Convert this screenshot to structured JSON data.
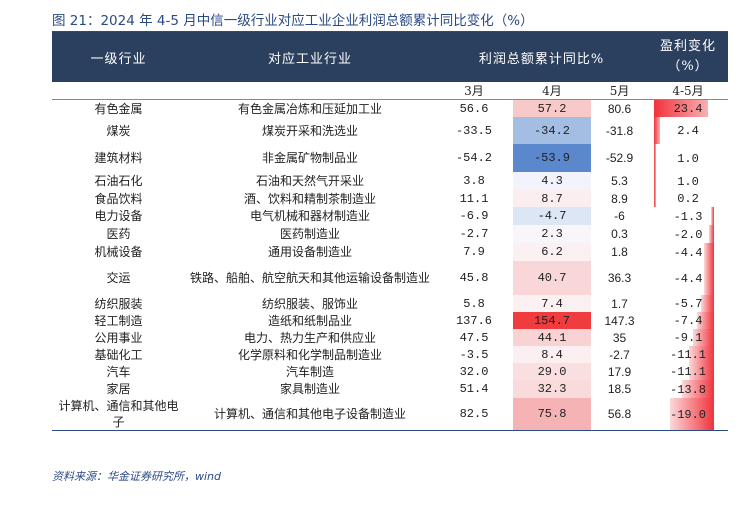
{
  "title": "图 21：2024 年 4-5 月中信一级行业对应工业企业利润总额累计同比变化（%）",
  "headers": {
    "col_industry": "一级行业",
    "col_corr": "对应工业行业",
    "col_profit": "利润总额累计同比%",
    "col_change": "盈利变化（%）",
    "m3": "3月",
    "m4": "4月",
    "m5": "5月",
    "m45": "4-5月"
  },
  "rows": [
    {
      "industry": "有色金属",
      "corr": "有色金属冶炼和压延加工业",
      "m3": "56.6",
      "m4": "57.2",
      "m5": "80.6",
      "chg": "23.4",
      "chg_value": 23.4,
      "m4_color": "#f8c9c9"
    },
    {
      "industry": "煤炭",
      "corr": "煤炭开采和洗选业",
      "m3": "-33.5",
      "m4": "-34.2",
      "m5": "-31.8",
      "chg": "2.4",
      "chg_value": 2.4,
      "m4_color": "#a3bde3"
    },
    {
      "industry": "建筑材料",
      "corr": "非金属矿物制品业",
      "m3": "-54.2",
      "m4": "-53.9",
      "m5": "-52.9",
      "chg": "1.0",
      "chg_value": 1.0,
      "m4_color": "#5b87cc"
    },
    {
      "industry": "石油石化",
      "corr": "石油和天然气开采业",
      "m3": "3.8",
      "m4": "4.3",
      "m5": "5.3",
      "chg": "1.0",
      "chg_value": 1.0,
      "m4_color": "#f3f4fb"
    },
    {
      "industry": "食品饮料",
      "corr": "酒、饮料和精制茶制造业",
      "m3": "11.1",
      "m4": "8.7",
      "m5": "8.9",
      "chg": "0.2",
      "chg_value": 0.2,
      "m4_color": "#fbeef0"
    },
    {
      "industry": "电力设备",
      "corr": "电气机械和器材制造业",
      "m3": "-6.9",
      "m4": "-4.7",
      "m5": "-6",
      "chg": "-1.3",
      "chg_value": -1.3,
      "m4_color": "#dde6f5"
    },
    {
      "industry": "医药",
      "corr": "医药制造业",
      "m3": "-2.7",
      "m4": "2.3",
      "m5": "0.3",
      "chg": "-2.0",
      "chg_value": -2.0,
      "m4_color": "#f9f6fa"
    },
    {
      "industry": "机械设备",
      "corr": "通用设备制造业",
      "m3": "7.9",
      "m4": "6.2",
      "m5": "1.8",
      "chg": "-4.4",
      "chg_value": -4.4,
      "m4_color": "#fbf1f3"
    },
    {
      "industry": "交运",
      "corr": "铁路、船舶、航空航天和其他运输设备制造业",
      "m3": "45.8",
      "m4": "40.7",
      "m5": "36.3",
      "chg": "-4.4",
      "chg_value": -4.4,
      "m4_color": "#f9d6d7"
    },
    {
      "industry": "纺织服装",
      "corr": "纺织服装、服饰业",
      "m3": "5.8",
      "m4": "7.4",
      "m5": "1.7",
      "chg": "-5.7",
      "chg_value": -5.7,
      "m4_color": "#fbf0f2"
    },
    {
      "industry": "轻工制造",
      "corr": "造纸和纸制品业",
      "m3": "137.6",
      "m4": "154.7",
      "m5": "147.3",
      "chg": "-7.4",
      "chg_value": -7.4,
      "m4_color": "#f03c3e"
    },
    {
      "industry": "公用事业",
      "corr": "电力、热力生产和供应业",
      "m3": "47.5",
      "m4": "44.1",
      "m5": "35",
      "chg": "-9.1",
      "chg_value": -9.1,
      "m4_color": "#f9d2d3"
    },
    {
      "industry": "基础化工",
      "corr": "化学原料和化学制品制造业",
      "m3": "-3.5",
      "m4": "8.4",
      "m5": "-2.7",
      "chg": "-11.1",
      "chg_value": -11.1,
      "m4_color": "#fbeff1"
    },
    {
      "industry": "汽车",
      "corr": "汽车制造",
      "m3": "32.0",
      "m4": "29.0",
      "m5": "17.9",
      "chg": "-11.1",
      "chg_value": -11.1,
      "m4_color": "#fadfe0"
    },
    {
      "industry": "家居",
      "corr": "家具制造业",
      "m3": "51.4",
      "m4": "32.3",
      "m5": "18.5",
      "chg": "-13.8",
      "chg_value": -13.8,
      "m4_color": "#fadbdc"
    },
    {
      "industry": "计算机、通信和其他电子",
      "corr": "计算机、通信和其他电子设备制造业",
      "m3": "82.5",
      "m4": "75.8",
      "m5": "56.8",
      "chg": "-19.0",
      "chg_value": -19.0,
      "m4_color": "#f6b3b5"
    }
  ],
  "source": "资料来源：华金证券研究所，wind"
}
